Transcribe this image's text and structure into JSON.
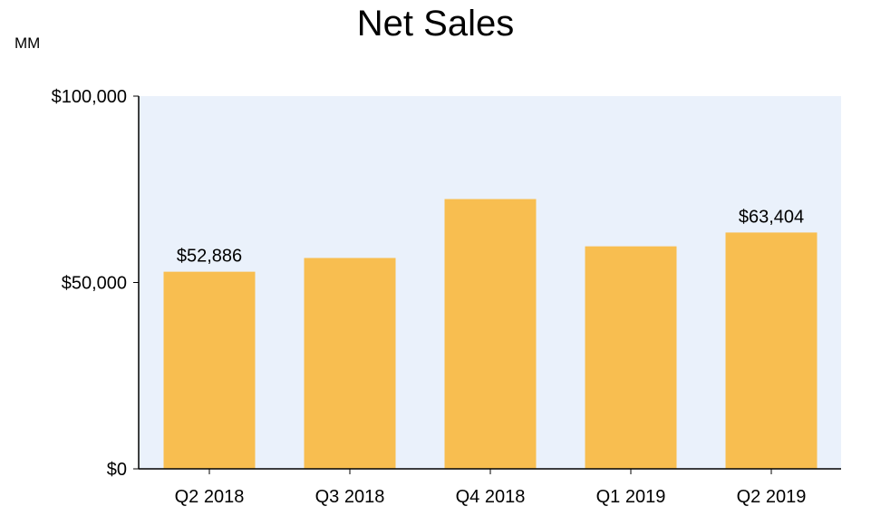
{
  "chart_data": {
    "type": "bar",
    "title": "Net Sales",
    "unit_label": "MM",
    "categories": [
      "Q2 2018",
      "Q3 2018",
      "Q4 2018",
      "Q1 2019",
      "Q2 2019"
    ],
    "values": [
      52886,
      56576,
      72383,
      59700,
      63404
    ],
    "data_labels": [
      "$52,886",
      null,
      null,
      null,
      "$63,404"
    ],
    "ylim": [
      0,
      100000
    ],
    "y_ticks": [
      0,
      50000,
      100000
    ],
    "y_tick_labels": [
      "$0",
      "$50,000",
      "$100,000"
    ],
    "grid": false,
    "bar_color": "#f8be50",
    "plot_background": "#eaf1fb",
    "axis_color": "#000000"
  }
}
